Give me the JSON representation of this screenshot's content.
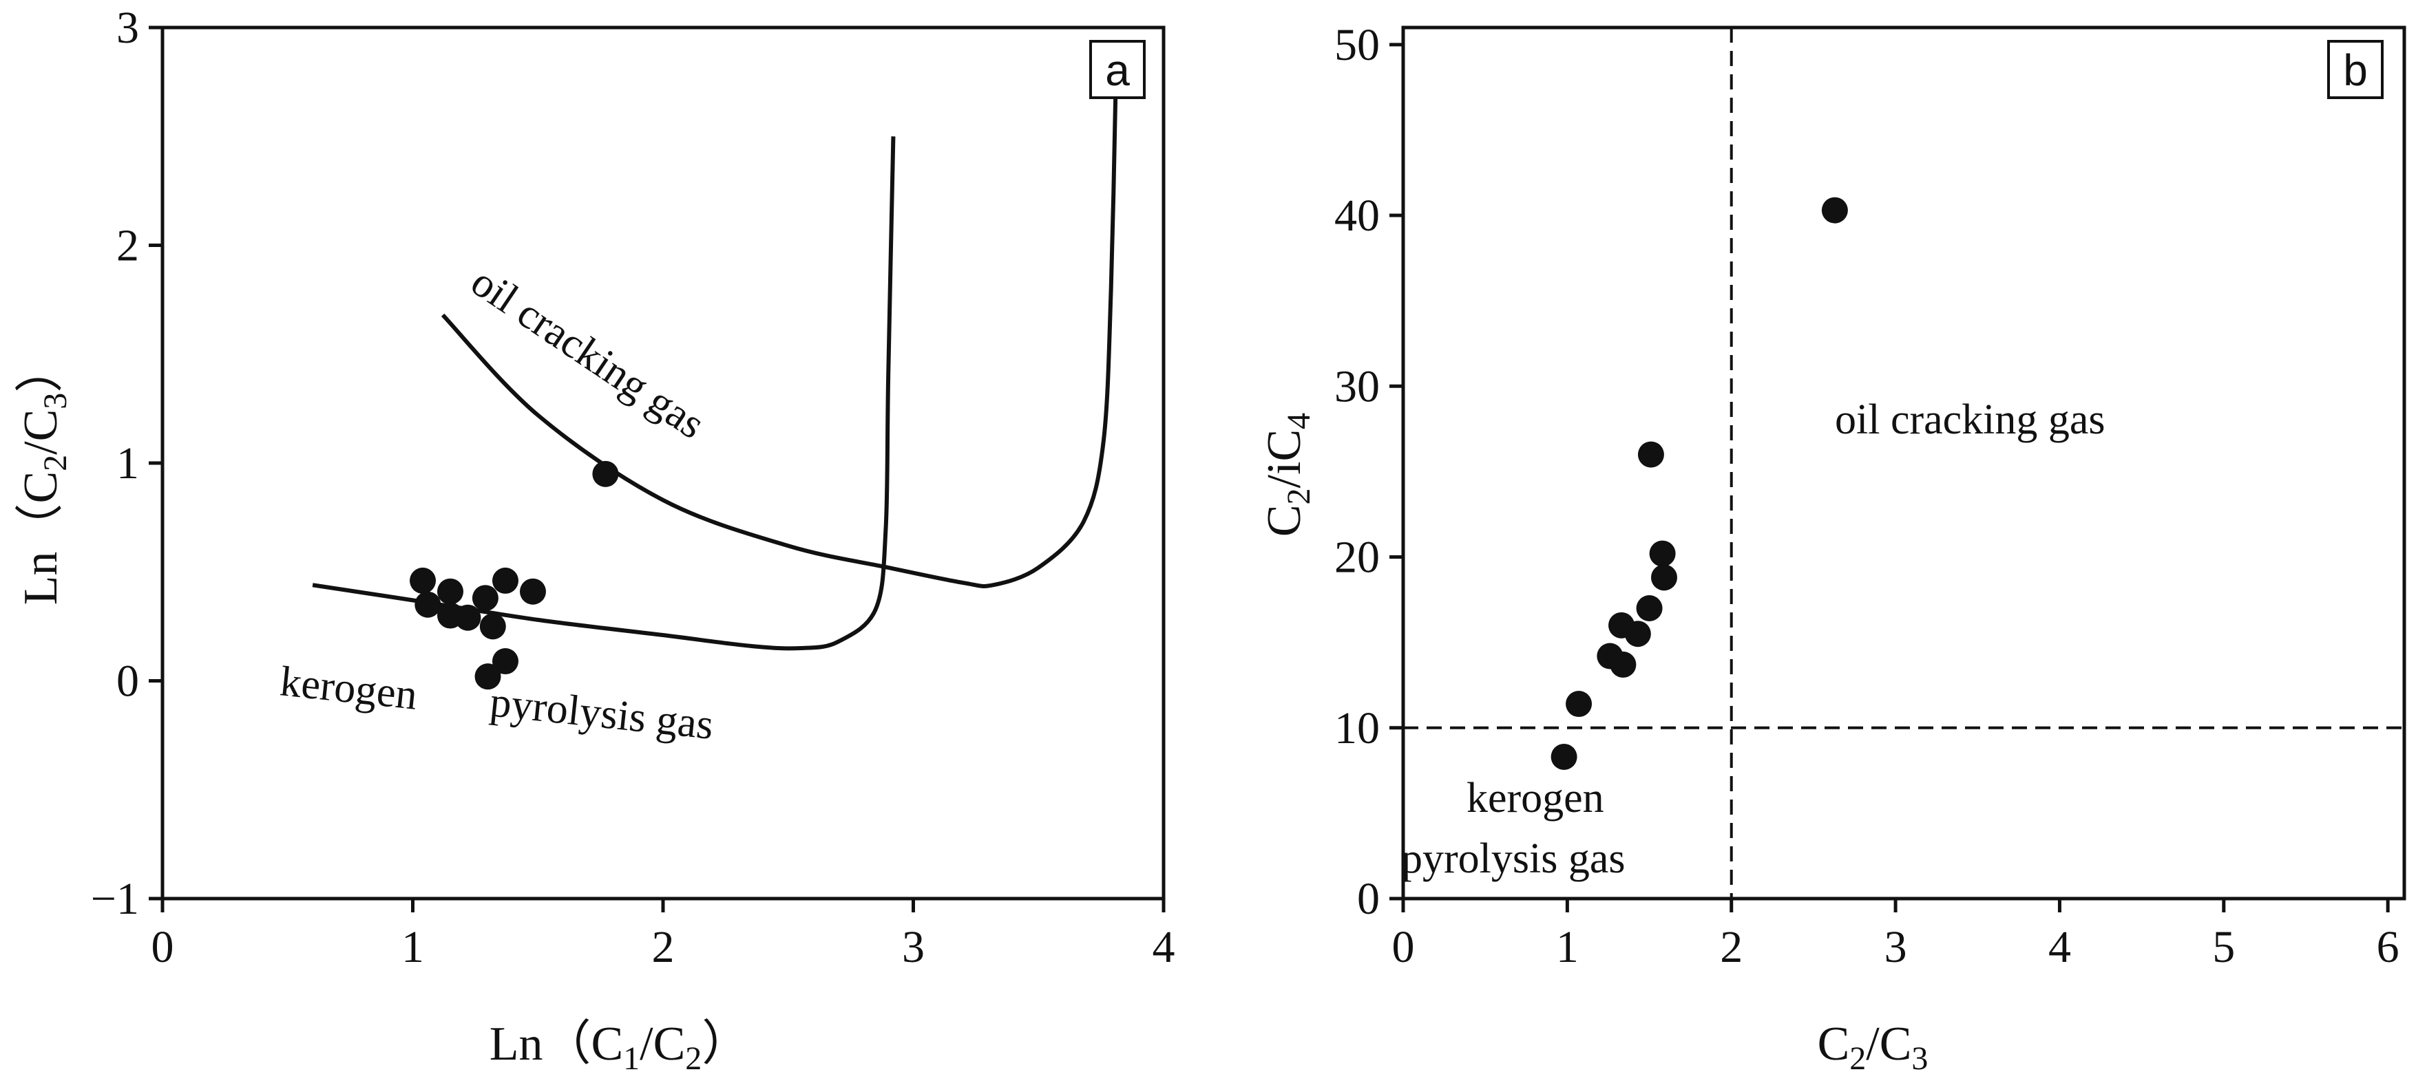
{
  "chart_data": [
    {
      "type": "scatter",
      "panel_label": "a",
      "xlim": [
        0,
        4
      ],
      "ylim": [
        -1,
        3
      ],
      "x_ticks": [
        0,
        1,
        2,
        3,
        4
      ],
      "y_ticks": [
        -1,
        0,
        1,
        2,
        3
      ],
      "x_tick_labels": [
        "0",
        "1",
        "2",
        "3",
        "4"
      ],
      "y_tick_labels": [
        "−1",
        "0",
        "1",
        "2",
        "3"
      ],
      "xlabel": {
        "prefix": "Ln（C",
        "sub1": "1",
        "mid": "/C",
        "sub2": "2",
        "suffix": "）"
      },
      "ylabel": {
        "prefix": "Ln（C",
        "sub1": "2",
        "mid": "/C",
        "sub2": "3",
        "suffix": "）"
      },
      "points": [
        [
          1.77,
          0.95
        ],
        [
          1.04,
          0.46
        ],
        [
          1.06,
          0.35
        ],
        [
          1.15,
          0.41
        ],
        [
          1.15,
          0.3
        ],
        [
          1.22,
          0.29
        ],
        [
          1.29,
          0.38
        ],
        [
          1.32,
          0.25
        ],
        [
          1.37,
          0.46
        ],
        [
          1.48,
          0.41
        ],
        [
          1.37,
          0.09
        ],
        [
          1.3,
          0.02
        ]
      ],
      "boundaries": {
        "oil_cracking_left": [
          [
            1.12,
            1.68
          ],
          [
            1.5,
            1.22
          ],
          [
            2.0,
            0.83
          ],
          [
            2.5,
            0.62
          ],
          [
            2.9,
            0.52
          ],
          [
            3.2,
            0.45
          ],
          [
            3.32,
            0.44
          ],
          [
            3.5,
            0.52
          ],
          [
            3.68,
            0.73
          ],
          [
            3.76,
            1.1
          ],
          [
            3.79,
            1.8
          ],
          [
            3.81,
            2.8
          ]
        ],
        "kerogen_upper": [
          [
            0.6,
            0.44
          ],
          [
            1.0,
            0.37
          ],
          [
            1.5,
            0.28
          ],
          [
            2.0,
            0.21
          ],
          [
            2.35,
            0.16
          ],
          [
            2.55,
            0.15
          ],
          [
            2.7,
            0.18
          ],
          [
            2.85,
            0.33
          ],
          [
            2.89,
            0.7
          ],
          [
            2.9,
            1.4
          ],
          [
            2.92,
            2.5
          ]
        ]
      },
      "region_labels": {
        "oil": "oil  cracking  gas",
        "kerogen_a": "kerogen",
        "kerogen_b": "pyrolysis  gas"
      }
    },
    {
      "type": "scatter",
      "panel_label": "b",
      "xlim": [
        0,
        6.1
      ],
      "ylim": [
        0,
        51
      ],
      "x_ticks": [
        0,
        1,
        2,
        3,
        4,
        5,
        6
      ],
      "y_ticks": [
        0,
        10,
        20,
        30,
        40,
        50
      ],
      "x_tick_labels": [
        "0",
        "1",
        "2",
        "3",
        "4",
        "5",
        "6"
      ],
      "y_tick_labels": [
        "0",
        "10",
        "20",
        "30",
        "40",
        "50"
      ],
      "xlabel": {
        "prefix": "C",
        "sub1": "2",
        "mid": "/C",
        "sub2": "3",
        "suffix": ""
      },
      "ylabel": {
        "prefix": "C",
        "sub1": "2",
        "mid": "/iC",
        "sub2": "4",
        "suffix": ""
      },
      "points": [
        [
          2.63,
          40.3
        ],
        [
          1.51,
          26.0
        ],
        [
          1.58,
          20.2
        ],
        [
          1.59,
          18.8
        ],
        [
          1.5,
          17.0
        ],
        [
          1.43,
          15.5
        ],
        [
          1.33,
          16.0
        ],
        [
          1.26,
          14.2
        ],
        [
          1.34,
          13.7
        ],
        [
          1.07,
          11.4
        ],
        [
          0.98,
          8.3
        ]
      ],
      "dashed_lines": {
        "x": 2,
        "y": 10
      },
      "region_labels": {
        "oil": "oil  cracking  gas",
        "kerogen_a": "kerogen",
        "kerogen_b": "pyrolysis gas"
      }
    }
  ]
}
